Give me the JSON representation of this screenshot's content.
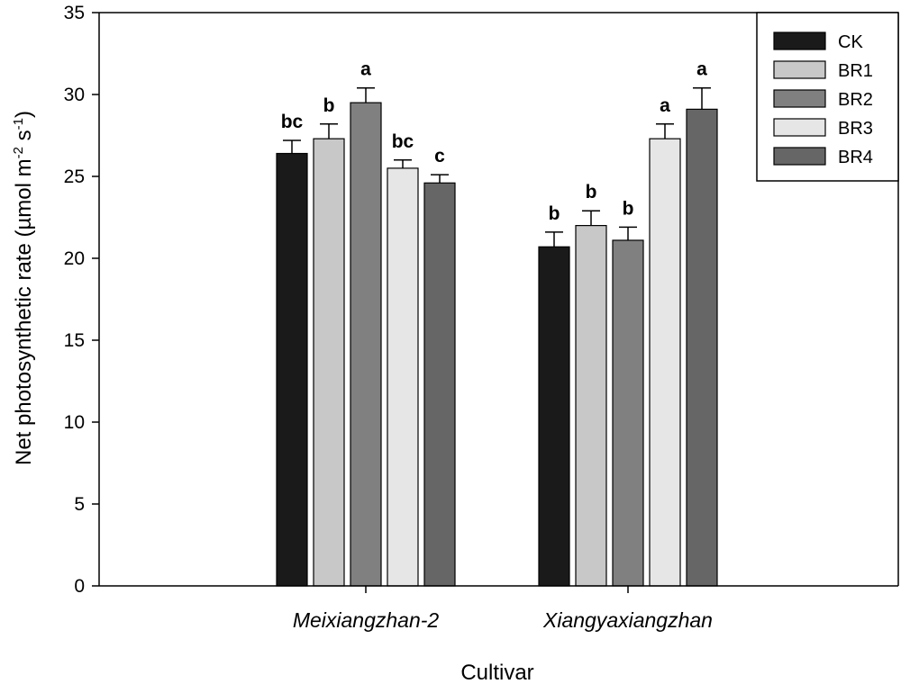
{
  "chart_data": {
    "type": "bar",
    "title": "",
    "xlabel": "Cultivar",
    "ylabel": {
      "text_main": "Net photosynthetic rate (µmol m",
      "sup1": "-2",
      "text_mid": " s",
      "sup2": "-1",
      "text_end": ")"
    },
    "ylim": [
      0,
      35
    ],
    "yticks": [
      0,
      5,
      10,
      15,
      20,
      25,
      30,
      35
    ],
    "categories": [
      "Meixiangzhan-2",
      "Xiangyaxiangzhan"
    ],
    "series": [
      {
        "name": "CK",
        "color": "#1a1a1a",
        "values": [
          26.4,
          20.7
        ],
        "errors": [
          0.8,
          0.9
        ],
        "sig": [
          "bc",
          "b"
        ]
      },
      {
        "name": "BR1",
        "color": "#c8c8c8",
        "values": [
          27.3,
          22.0
        ],
        "errors": [
          0.9,
          0.9
        ],
        "sig": [
          "b",
          "b"
        ]
      },
      {
        "name": "BR2",
        "color": "#808080",
        "values": [
          29.5,
          21.1
        ],
        "errors": [
          0.9,
          0.8
        ],
        "sig": [
          "a",
          "b"
        ]
      },
      {
        "name": "BR3",
        "color": "#e6e6e6",
        "values": [
          25.5,
          27.3
        ],
        "errors": [
          0.5,
          0.9
        ],
        "sig": [
          "bc",
          "a"
        ]
      },
      {
        "name": "BR4",
        "color": "#666666",
        "values": [
          24.6,
          29.1
        ],
        "errors": [
          0.5,
          1.3
        ],
        "sig": [
          "c",
          "a"
        ]
      }
    ],
    "legend_position": "top-right",
    "grid": false
  }
}
